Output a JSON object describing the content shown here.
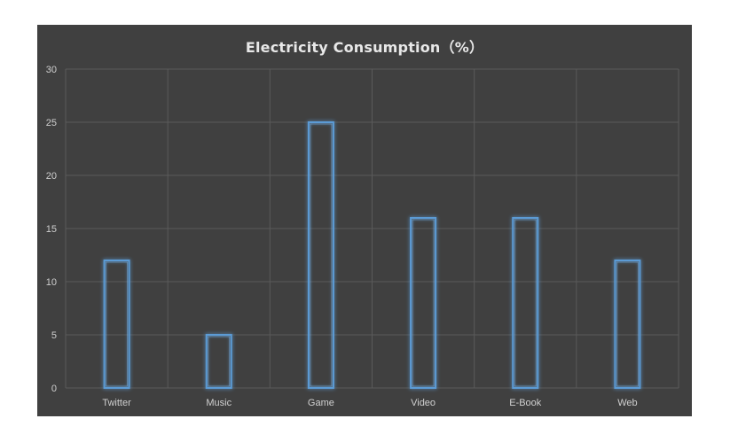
{
  "chart_data": {
    "type": "bar",
    "title": "Electricity Consumption（%）",
    "categories": [
      "Twitter",
      "Music",
      "Game",
      "Video",
      "E-Book",
      "Web"
    ],
    "values": [
      12,
      5,
      25,
      16,
      16,
      12
    ],
    "ylim": [
      0,
      30
    ],
    "yticks": [
      0,
      5,
      10,
      15,
      20,
      25,
      30
    ],
    "xlabel": "",
    "ylabel": "",
    "grid": true,
    "colors": {
      "panel": "#404040",
      "grid": "#5a5a5a",
      "bar_stroke": "#5b9bd5",
      "bar_glow": "#7fb4e6",
      "text": "#d0d0d0"
    }
  }
}
